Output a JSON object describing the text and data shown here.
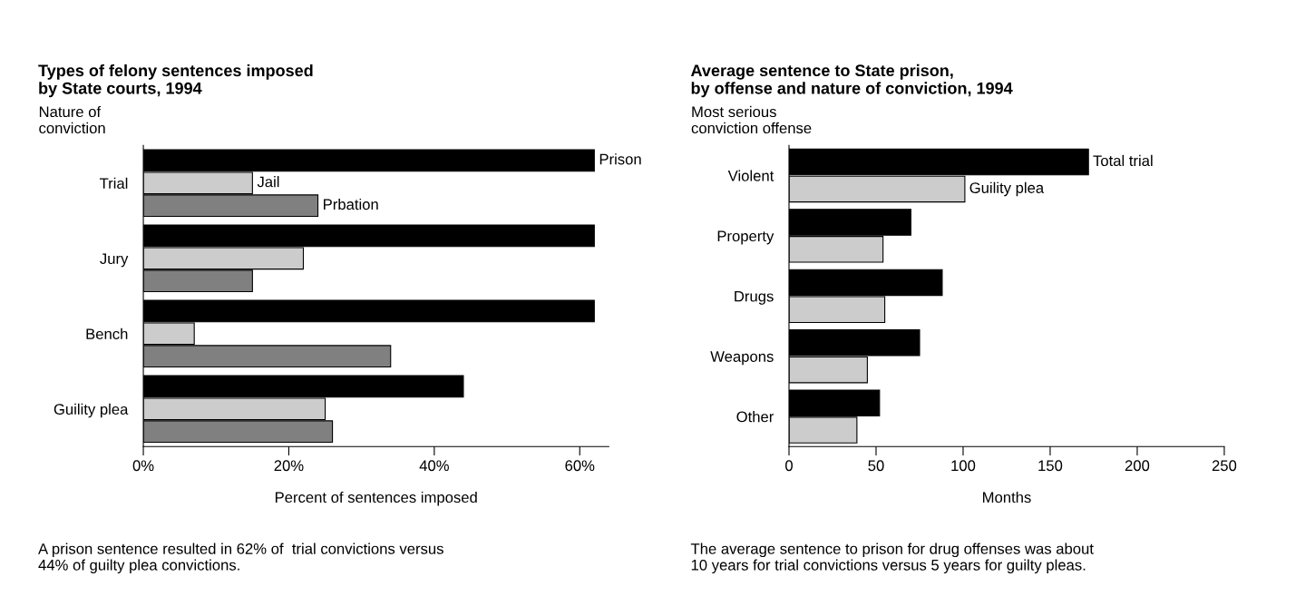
{
  "chart_data": [
    {
      "type": "bar",
      "orientation": "horizontal",
      "title": "Types of felony sentences imposed\nby State courts, 1994",
      "ylabel": "Nature of\nconviction",
      "xlabel": "Percent of sentences imposed",
      "categories": [
        "Trial",
        "Jury",
        "Bench",
        "Guility plea"
      ],
      "series": [
        {
          "name": "Prison",
          "color": "#000000",
          "values": [
            62,
            62,
            62,
            44
          ]
        },
        {
          "name": "Jail",
          "color": "#cccccc",
          "values": [
            15,
            22,
            7,
            25
          ]
        },
        {
          "name": "Prbation",
          "color": "#808080",
          "values": [
            24,
            15,
            34,
            26
          ]
        }
      ],
      "xlim": [
        0,
        64
      ],
      "xticks": [
        {
          "value": 0,
          "label": "0%"
        },
        {
          "value": 20,
          "label": "20%"
        },
        {
          "value": 40,
          "label": "40%"
        },
        {
          "value": 60,
          "label": "60%"
        }
      ],
      "grid": false,
      "legend": false,
      "annotations": [
        "A prison sentence resulted in 62% of  trial convictions versus\n44% of guilty plea convictions."
      ]
    },
    {
      "type": "bar",
      "orientation": "horizontal",
      "title": "Average sentence to State prison,\nby offense and nature of conviction, 1994",
      "ylabel": "Most serious\nconviction offense",
      "xlabel": "Months",
      "categories": [
        "Violent",
        "Property",
        "Drugs",
        "Weapons",
        "Other"
      ],
      "series": [
        {
          "name": "Total trial",
          "color": "#000000",
          "values": [
            172,
            70,
            88,
            75,
            52
          ]
        },
        {
          "name": "Guility plea",
          "color": "#cccccc",
          "values": [
            101,
            54,
            55,
            45,
            39
          ]
        }
      ],
      "xlim": [
        0,
        250
      ],
      "xticks": [
        0,
        50,
        100,
        150,
        200,
        250
      ],
      "grid": false,
      "legend": false,
      "annotations": [
        "The average sentence to prison for drug offenses was about\n10 years for trial convictions versus 5 years for guilty pleas."
      ]
    }
  ]
}
